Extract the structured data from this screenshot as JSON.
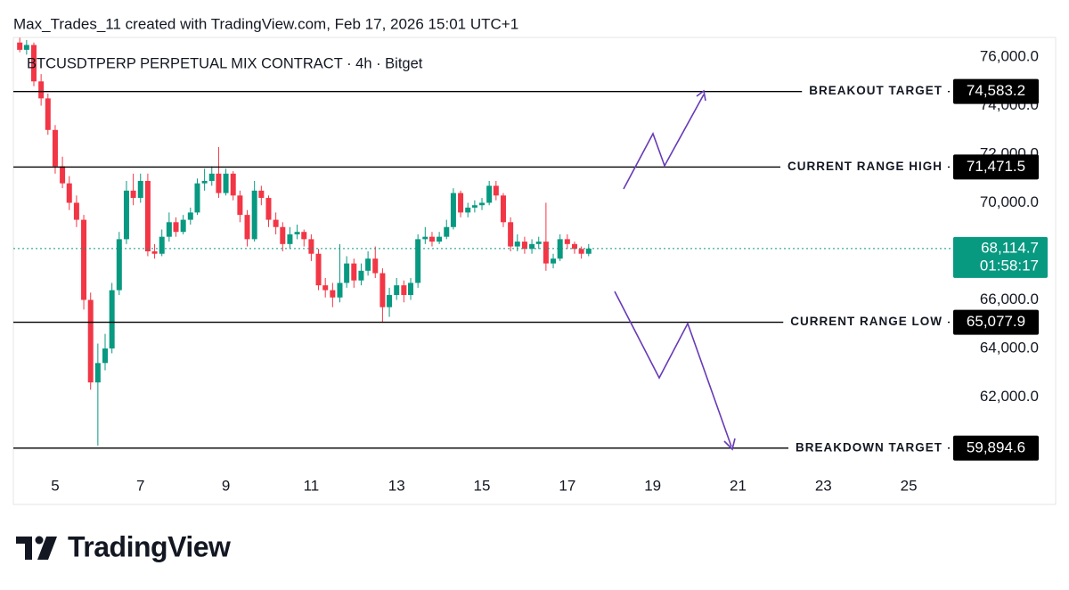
{
  "header": "Max_Trades_11 created with TradingView.com, Feb 17, 2026 15:01 UTC+1",
  "chart_data": {
    "type": "candlestick",
    "title": "BTCUSDTPERP PERPETUAL MIX CONTRACT · 4h · Bitget",
    "x": [
      4.17,
      4.33,
      4.5,
      4.67,
      4.83,
      5,
      5.17,
      5.33,
      5.5,
      5.67,
      5.83,
      6,
      6.17,
      6.33,
      6.5,
      6.67,
      6.83,
      7,
      7.17,
      7.33,
      7.5,
      7.67,
      7.83,
      8,
      8.17,
      8.33,
      8.5,
      8.67,
      8.83,
      9,
      9.17,
      9.33,
      9.5,
      9.67,
      9.83,
      10,
      10.17,
      10.33,
      10.5,
      10.67,
      10.83,
      11,
      11.17,
      11.33,
      11.5,
      11.67,
      11.83,
      12,
      12.17,
      12.33,
      12.5,
      12.67,
      12.83,
      13,
      13.17,
      13.33,
      13.5,
      13.67,
      13.83,
      14,
      14.17,
      14.33,
      14.5,
      14.67,
      14.83,
      15,
      15.17,
      15.33,
      15.5,
      15.67,
      15.83,
      16,
      16.17,
      16.33,
      16.5,
      16.67,
      16.83,
      17,
      17.17,
      17.33,
      17.5
    ],
    "open": [
      76600,
      76300,
      76500,
      75000,
      74300,
      73000,
      71500,
      70800,
      70000,
      69300,
      66000,
      62600,
      63400,
      64000,
      66400,
      68500,
      70500,
      70200,
      70900,
      68000,
      67900,
      68600,
      69200,
      68800,
      69300,
      69600,
      70800,
      70900,
      71200,
      70400,
      71200,
      70300,
      69500,
      68500,
      70500,
      70200,
      69300,
      69000,
      68300,
      68700,
      68800,
      68500,
      67900,
      66600,
      66400,
      66100,
      66700,
      67500,
      66800,
      67200,
      67700,
      67100,
      65700,
      66200,
      66600,
      66200,
      66700,
      68500,
      68600,
      68400,
      68600,
      69000,
      70400,
      69600,
      69800,
      69900,
      70000,
      70700,
      70300,
      69200,
      68200,
      68400,
      68100,
      68300,
      68400,
      67500,
      67700,
      68500,
      68300,
      68100,
      67900
    ],
    "high": [
      76800,
      76700,
      76600,
      75300,
      74500,
      73200,
      71900,
      71100,
      70300,
      69500,
      66300,
      64200,
      64600,
      66700,
      68800,
      70900,
      71200,
      71200,
      71200,
      68300,
      68900,
      69600,
      69400,
      69500,
      69800,
      71000,
      71400,
      71500,
      72300,
      71400,
      71300,
      70500,
      69700,
      70900,
      70700,
      70300,
      69600,
      69200,
      69000,
      69100,
      68900,
      68700,
      68100,
      66900,
      66700,
      68300,
      67800,
      67700,
      67500,
      68000,
      68200,
      67300,
      66500,
      66900,
      66800,
      66900,
      68700,
      69000,
      68800,
      68800,
      69300,
      70600,
      70500,
      70000,
      70100,
      70200,
      70900,
      70900,
      70400,
      69400,
      68700,
      68600,
      68500,
      68600,
      70000,
      67900,
      68700,
      68700,
      68400,
      68200,
      68300
    ],
    "low": [
      76200,
      76100,
      74800,
      74000,
      72800,
      71200,
      70600,
      69700,
      69000,
      65600,
      62300,
      60000,
      63100,
      63800,
      66200,
      68300,
      69900,
      70000,
      67800,
      67700,
      67800,
      68400,
      68600,
      68700,
      69100,
      69500,
      70500,
      70700,
      70200,
      70300,
      70100,
      69200,
      68200,
      68400,
      69900,
      69000,
      68700,
      68000,
      68100,
      68500,
      68200,
      67600,
      66400,
      66100,
      65700,
      65900,
      66500,
      66500,
      66600,
      67000,
      66900,
      65100,
      65300,
      66000,
      65900,
      66000,
      66500,
      68300,
      68200,
      68300,
      68500,
      68900,
      69400,
      69400,
      69600,
      69700,
      69900,
      70100,
      69000,
      68000,
      68000,
      67900,
      67900,
      68100,
      67200,
      67300,
      67600,
      68100,
      67900,
      67700,
      67800
    ],
    "close": [
      76300,
      76500,
      75000,
      74300,
      73000,
      71500,
      70800,
      70000,
      69300,
      66000,
      62600,
      63400,
      64000,
      66400,
      68500,
      70500,
      70200,
      70900,
      68000,
      67900,
      68600,
      69200,
      68800,
      69300,
      69600,
      70800,
      70900,
      71200,
      70400,
      71200,
      70300,
      69500,
      68500,
      70500,
      70200,
      69300,
      69000,
      68300,
      68700,
      68800,
      68500,
      67900,
      66600,
      66400,
      66100,
      66700,
      67500,
      66800,
      67200,
      67700,
      67100,
      65700,
      66200,
      66600,
      66200,
      66700,
      68500,
      68600,
      68400,
      68600,
      69000,
      70400,
      69600,
      69800,
      69900,
      70000,
      70700,
      70300,
      69200,
      68200,
      68400,
      68100,
      68300,
      68400,
      67500,
      67700,
      68500,
      68300,
      68100,
      67900,
      68114.7
    ],
    "up_color": "#089981",
    "down_color": "#f23645",
    "xlim": [
      4.02,
      26.0
    ],
    "xticks": [
      5,
      7,
      9,
      11,
      13,
      15,
      17,
      19,
      21,
      23,
      25
    ],
    "ylim": [
      58970,
      76810
    ],
    "yticks": [
      {
        "value": 62000,
        "label": "62,000.0"
      },
      {
        "value": 64000,
        "label": "64,000.0"
      },
      {
        "value": 66000,
        "label": "66,000.0"
      },
      {
        "value": 70000,
        "label": "70,000.0"
      },
      {
        "value": 72000,
        "label": "72,000.0"
      },
      {
        "value": 74000,
        "label": "74,000.0"
      },
      {
        "value": 76000,
        "label": "76,000.0"
      }
    ],
    "levels": [
      {
        "label": "BREAKOUT TARGET",
        "value": 74583.2,
        "value_label": "74,583.2"
      },
      {
        "label": "CURRENT RANGE HIGH",
        "value": 71471.5,
        "value_label": "71,471.5"
      },
      {
        "label": "CURRENT RANGE LOW",
        "value": 65077.9,
        "value_label": "65,077.9"
      },
      {
        "label": "BREAKDOWN TARGET",
        "value": 59894.6,
        "value_label": "59,894.6"
      }
    ],
    "last_price": {
      "value": 68114.7,
      "label": "68,114.7",
      "countdown": "01:58:17",
      "color": "#089981"
    }
  },
  "footer": {
    "brand": "TradingView"
  }
}
